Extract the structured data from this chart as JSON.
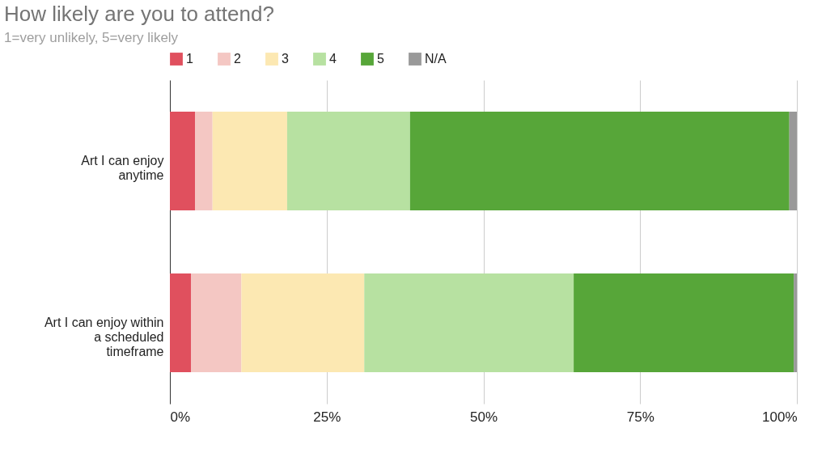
{
  "chart_data": {
    "type": "bar",
    "orientation": "horizontal",
    "stacked": true,
    "title": "How likely are you to attend?",
    "subtitle": "1=very unlikely, 5=very likely",
    "categories": [
      "Art I can enjoy\nanytime",
      "Art I can enjoy within\na scheduled\ntimeframe"
    ],
    "series": [
      {
        "name": "1",
        "color": "#e0505e",
        "values": [
          4.0,
          3.4
        ]
      },
      {
        "name": "2",
        "color": "#f4c7c3",
        "values": [
          2.8,
          8.0
        ]
      },
      {
        "name": "3",
        "color": "#fce8b2",
        "values": [
          11.9,
          19.6
        ]
      },
      {
        "name": "4",
        "color": "#b7e1a1",
        "values": [
          19.6,
          33.4
        ]
      },
      {
        "name": "5",
        "color": "#57a639",
        "values": [
          60.5,
          35.1
        ]
      },
      {
        "name": "N/A",
        "color": "#999999",
        "values": [
          1.2,
          0.5
        ]
      }
    ],
    "xlim": [
      0,
      100
    ],
    "xticks": [
      {
        "value": 0,
        "label": "0%"
      },
      {
        "value": 25,
        "label": "25%"
      },
      {
        "value": 50,
        "label": "50%"
      },
      {
        "value": 75,
        "label": "75%"
      },
      {
        "value": 100,
        "label": "100%"
      }
    ],
    "grid": "x",
    "legend": "top"
  }
}
